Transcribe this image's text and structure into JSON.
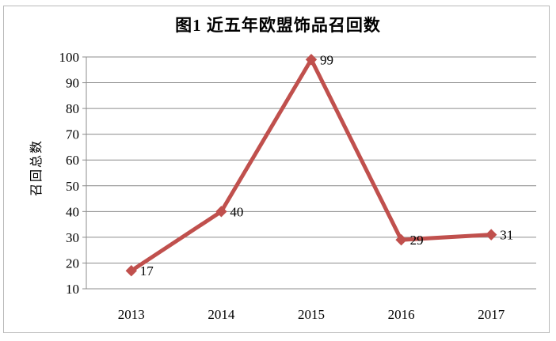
{
  "figure": {
    "title": "图1 近五年欧盟饰品召回数"
  },
  "chart_data": {
    "type": "line",
    "title": "图1 近五年欧盟饰品召回数",
    "categories": [
      "2013",
      "2014",
      "2015",
      "2016",
      "2017"
    ],
    "series": [
      {
        "name": "召回总数",
        "values": [
          17,
          40,
          99,
          29,
          31
        ]
      }
    ],
    "xlabel": "",
    "ylabel": "召回总数",
    "ylim": [
      10,
      100
    ],
    "ytick_step": 10,
    "yticks": [
      10,
      20,
      30,
      40,
      50,
      60,
      70,
      80,
      90,
      100
    ],
    "grid": true,
    "legend_position": "none",
    "marker": "diamond",
    "data_labels": [
      17,
      40,
      99,
      29,
      31
    ],
    "colors": {
      "line": "#C0504D",
      "marker": "#C0504D",
      "gridline": "#8C8C8C",
      "axis": "#8C8C8C",
      "text": "#000000",
      "frame_border": "#B9B9B9",
      "background": "#FFFFFF"
    }
  }
}
